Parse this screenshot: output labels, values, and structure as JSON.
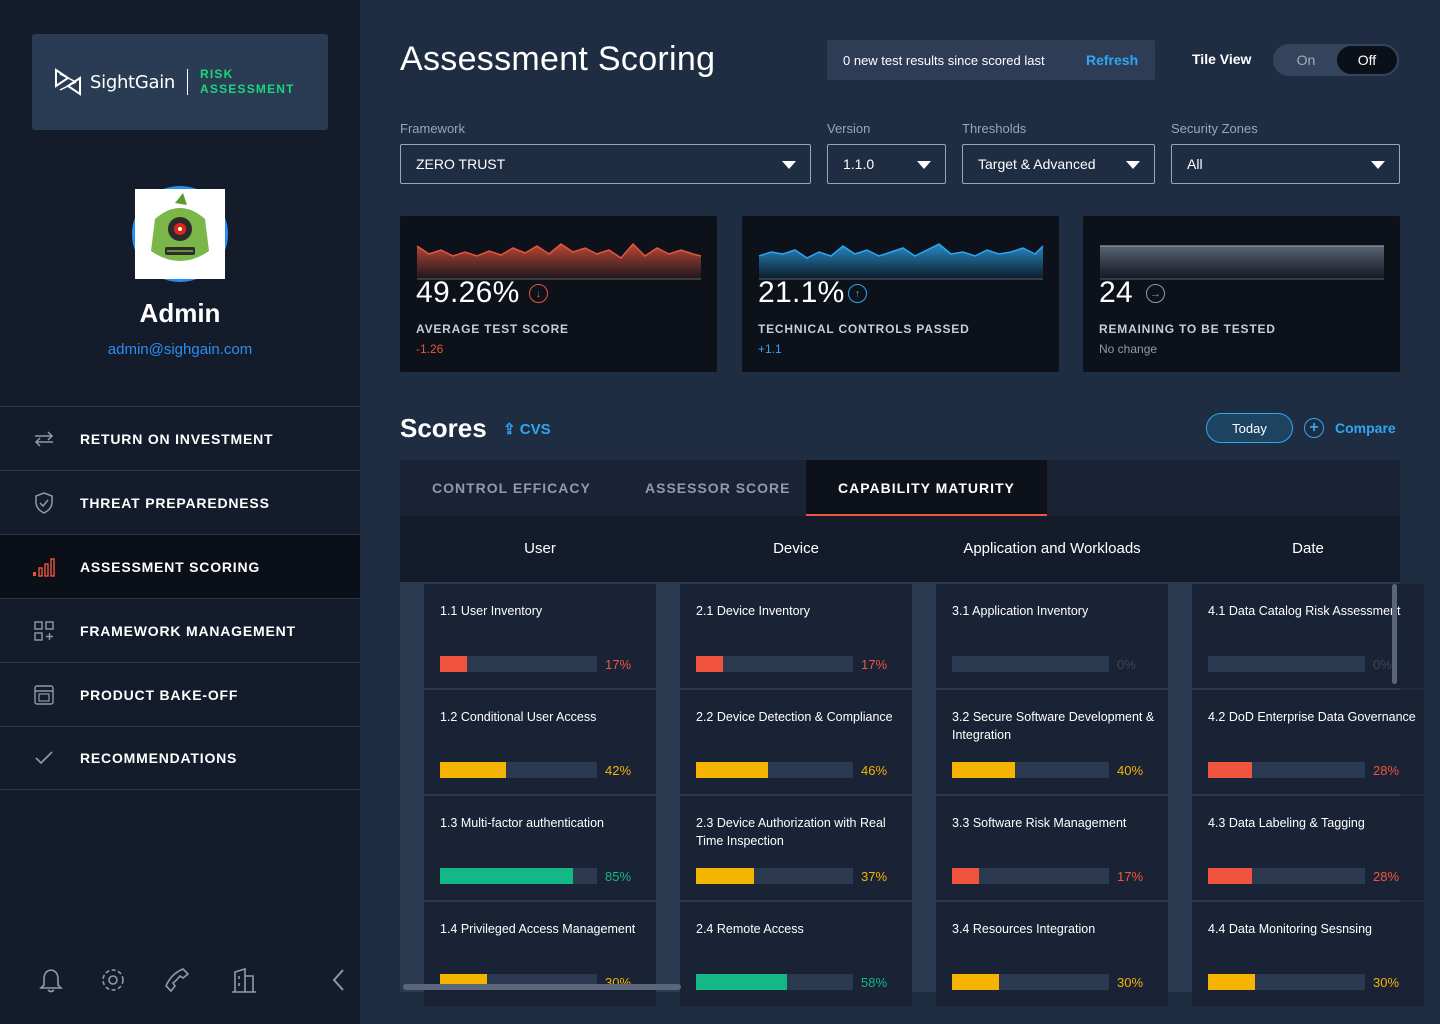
{
  "brand": {
    "name": "SightGain",
    "sub_line1": "RISK",
    "sub_line2": "ASSESSMENT"
  },
  "profile": {
    "name": "Admin",
    "email": "admin@sighgain.com"
  },
  "nav": [
    {
      "label": "RETURN ON INVESTMENT",
      "icon": "arrows-exchange-icon"
    },
    {
      "label": "THREAT PREPAREDNESS",
      "icon": "shield-icon"
    },
    {
      "label": "ASSESSMENT SCORING",
      "icon": "signal-bars-icon",
      "active": true
    },
    {
      "label": "FRAMEWORK MANAGEMENT",
      "icon": "grid-plus-icon"
    },
    {
      "label": "PRODUCT BAKE-OFF",
      "icon": "oven-icon"
    },
    {
      "label": "RECOMMENDATIONS",
      "icon": "check-icon"
    }
  ],
  "page": {
    "title": "Assessment Scoring"
  },
  "notice": {
    "text": "0 new test results since scored last",
    "refresh": "Refresh"
  },
  "tile_view": {
    "label": "Tile View",
    "on": "On",
    "off": "Off",
    "selected": "Off"
  },
  "filters": {
    "framework": {
      "label": "Framework",
      "value": "ZERO TRUST"
    },
    "version": {
      "label": "Version",
      "value": "1.1.0"
    },
    "thresholds": {
      "label": "Thresholds",
      "value": "Target & Advanced"
    },
    "zones": {
      "label": "Security Zones",
      "value": "All"
    }
  },
  "kpis": [
    {
      "value": "49.26%",
      "label": "AVERAGE TEST SCORE",
      "delta": "-1.26",
      "trend": "down",
      "color": "#e8553d"
    },
    {
      "value": "21.1%",
      "label": "TECHNICAL CONTROLS PASSED",
      "delta": "+1.1",
      "trend": "up",
      "color": "#2ea7f0"
    },
    {
      "value": "24",
      "label": "REMAINING TO BE TESTED",
      "delta": "No change",
      "trend": "flat",
      "color": "#8f9aab"
    }
  ],
  "scores": {
    "title": "Scores",
    "export": "CVS",
    "today": "Today",
    "compare": "Compare",
    "tabs": [
      "CONTROL EFFICACY",
      "ASSESSOR SCORE",
      "CAPABILITY MATURITY"
    ],
    "active_tab": "CAPABILITY MATURITY",
    "columns": [
      "User",
      "Device",
      "Application and Workloads",
      "Date"
    ],
    "colors": {
      "low": "#f0543e",
      "mid": "#f5b400",
      "high": "#12b886",
      "none": "#3a4658"
    },
    "cells": [
      [
        {
          "title": "1.1 User Inventory",
          "pct": "17%",
          "value": 0.17,
          "level": "low"
        },
        {
          "title": "1.2 Conditional User Access",
          "pct": "42%",
          "value": 0.42,
          "level": "mid"
        },
        {
          "title": "1.3 Multi-factor authentication",
          "pct": "85%",
          "value": 0.85,
          "level": "high"
        },
        {
          "title": "1.4 Privileged Access Management",
          "pct": "30%",
          "value": 0.3,
          "level": "mid"
        }
      ],
      [
        {
          "title": "2.1 Device Inventory",
          "pct": "17%",
          "value": 0.17,
          "level": "low"
        },
        {
          "title": "2.2 Device Detection & Compliance",
          "pct": "46%",
          "value": 0.46,
          "level": "mid"
        },
        {
          "title": "2.3 Device Authorization with Real Time Inspection",
          "pct": "37%",
          "value": 0.37,
          "level": "mid"
        },
        {
          "title": "2.4 Remote Access",
          "pct": "58%",
          "value": 0.58,
          "level": "high"
        }
      ],
      [
        {
          "title": "3.1 Application Inventory",
          "pct": "0%",
          "value": 0,
          "level": "none"
        },
        {
          "title": "3.2 Secure Software Development & Integration",
          "pct": "40%",
          "value": 0.4,
          "level": "mid"
        },
        {
          "title": "3.3 Software Risk Management",
          "pct": "17%",
          "value": 0.17,
          "level": "low"
        },
        {
          "title": "3.4 Resources Integration",
          "pct": "30%",
          "value": 0.3,
          "level": "mid"
        }
      ],
      [
        {
          "title": "4.1 Data Catalog Risk Assessment",
          "pct": "0%",
          "value": 0,
          "level": "none"
        },
        {
          "title": "4.2 DoD Enterprise Data Governance",
          "pct": "28%",
          "value": 0.28,
          "level": "low"
        },
        {
          "title": "4.3 Data Labeling & Tagging",
          "pct": "28%",
          "value": 0.28,
          "level": "low"
        },
        {
          "title": "4.4 Data Monitoring Sesnsing",
          "pct": "30%",
          "value": 0.3,
          "level": "mid"
        }
      ]
    ]
  }
}
